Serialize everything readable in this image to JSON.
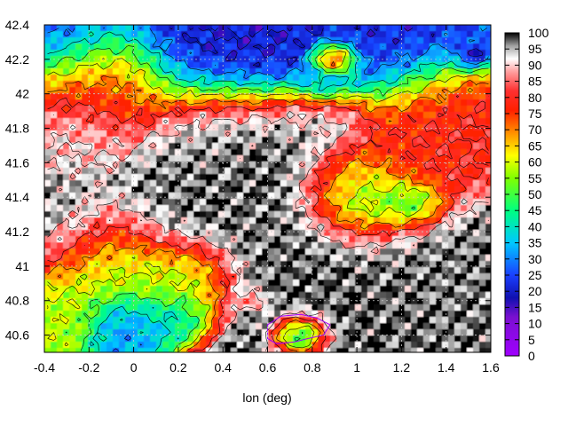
{
  "chart_data": {
    "type": "heatmap",
    "title": "",
    "xlabel": "lon (deg)",
    "ylabel": "",
    "xlim": [
      -0.4,
      1.6
    ],
    "ylim": [
      40.5,
      42.4
    ],
    "xticks": [
      -0.4,
      -0.2,
      0,
      0.2,
      0.4,
      0.6,
      0.8,
      1,
      1.2,
      1.4,
      1.6
    ],
    "xtick_labels": [
      "-0.4",
      "-0.2",
      "0",
      "0.2",
      "0.4",
      "0.6",
      "0.8",
      "1",
      "1.2",
      "1.4",
      "1.6"
    ],
    "yticks": [
      40.6,
      40.8,
      41,
      41.2,
      41.4,
      41.6,
      41.8,
      42,
      42.2,
      42.4
    ],
    "ytick_labels": [
      "40.6",
      "40.8",
      "41",
      "41.2",
      "41.4",
      "41.6",
      "41.8",
      "42",
      "42.2",
      "42.4"
    ],
    "colorbar": {
      "range": [
        0,
        100
      ],
      "ticks": [
        0,
        5,
        10,
        15,
        20,
        25,
        30,
        35,
        40,
        45,
        50,
        55,
        60,
        65,
        70,
        75,
        80,
        85,
        90,
        95,
        100
      ],
      "tick_labels": [
        "0",
        "5",
        "10",
        "15",
        "20",
        "25",
        "30",
        "35",
        "40",
        "45",
        "50",
        "55",
        "60",
        "65",
        "70",
        "75",
        "80",
        "85",
        "90",
        "95",
        "100"
      ],
      "palette": [
        {
          "v": 0,
          "color": "#a000ff"
        },
        {
          "v": 12,
          "color": "#7a10d0"
        },
        {
          "v": 18,
          "color": "#1010b0"
        },
        {
          "v": 25,
          "color": "#1a40ff"
        },
        {
          "v": 35,
          "color": "#00c8ff"
        },
        {
          "v": 45,
          "color": "#00ff80"
        },
        {
          "v": 55,
          "color": "#80ff00"
        },
        {
          "v": 62,
          "color": "#ffff00"
        },
        {
          "v": 70,
          "color": "#ff8000"
        },
        {
          "v": 76,
          "color": "#ff2000"
        },
        {
          "v": 82,
          "color": "#ff3030"
        },
        {
          "v": 88,
          "color": "#ffa0a0"
        },
        {
          "v": 92,
          "color": "#ffffff"
        },
        {
          "v": 96,
          "color": "#a0a0a0"
        },
        {
          "v": 100,
          "color": "#000000"
        }
      ]
    },
    "grid": true,
    "field_features": [
      {
        "lon": -0.35,
        "lat": 42.35,
        "value": 22,
        "r": 0.3
      },
      {
        "lon": 0.4,
        "lat": 42.38,
        "value": 20,
        "r": 0.45
      },
      {
        "lon": 1.15,
        "lat": 42.35,
        "value": 22,
        "r": 0.4
      },
      {
        "lon": 1.52,
        "lat": 42.22,
        "value": 14,
        "r": 0.08
      },
      {
        "lon": 0.85,
        "lat": 42.05,
        "value": 30,
        "r": 0.12
      },
      {
        "lon": 0.9,
        "lat": 42.2,
        "value": 96,
        "r": 0.1
      },
      {
        "lon": -0.2,
        "lat": 42.05,
        "value": 76,
        "r": 0.35
      },
      {
        "lon": -0.3,
        "lat": 41.75,
        "value": 92,
        "r": 0.25
      },
      {
        "lon": 0.4,
        "lat": 41.7,
        "value": 97,
        "r": 0.35
      },
      {
        "lon": 0.7,
        "lat": 41.55,
        "value": 99,
        "r": 0.3
      },
      {
        "lon": 0.85,
        "lat": 41.85,
        "value": 93,
        "r": 0.2
      },
      {
        "lon": 1.4,
        "lat": 41.85,
        "value": 80,
        "r": 0.35
      },
      {
        "lon": 1.3,
        "lat": 41.6,
        "value": 78,
        "r": 0.3
      },
      {
        "lon": -0.3,
        "lat": 41.25,
        "value": 98,
        "r": 0.28
      },
      {
        "lon": 0.15,
        "lat": 41.3,
        "value": 99,
        "r": 0.28
      },
      {
        "lon": 0.55,
        "lat": 41.25,
        "value": 97,
        "r": 0.2
      },
      {
        "lon": 1.05,
        "lat": 41.35,
        "value": 40,
        "r": 0.25
      },
      {
        "lon": 1.25,
        "lat": 41.35,
        "value": 30,
        "r": 0.15
      },
      {
        "lon": 0.95,
        "lat": 41.5,
        "value": 62,
        "r": 0.2
      },
      {
        "lon": -0.1,
        "lat": 41.05,
        "value": 58,
        "r": 0.3
      },
      {
        "lon": 0.2,
        "lat": 40.9,
        "value": 55,
        "r": 0.25
      },
      {
        "lon": 0.0,
        "lat": 40.65,
        "value": 30,
        "r": 0.2
      },
      {
        "lon": 0.2,
        "lat": 40.7,
        "value": 35,
        "r": 0.15
      },
      {
        "lon": -0.35,
        "lat": 40.7,
        "value": 58,
        "r": 0.2
      },
      {
        "lon": 0.9,
        "lat": 40.75,
        "value": 99,
        "r": 0.6
      },
      {
        "lon": 1.3,
        "lat": 40.85,
        "value": 97,
        "r": 0.5
      },
      {
        "lon": 1.35,
        "lat": 41.05,
        "value": 98,
        "r": 0.35
      },
      {
        "lon": 0.75,
        "lat": 41.05,
        "value": 98,
        "r": 0.3
      },
      {
        "lon": 0.55,
        "lat": 40.8,
        "value": 75,
        "r": 0.06
      },
      {
        "lon": 0.75,
        "lat": 40.6,
        "value": 5,
        "r": 0.12
      }
    ]
  }
}
